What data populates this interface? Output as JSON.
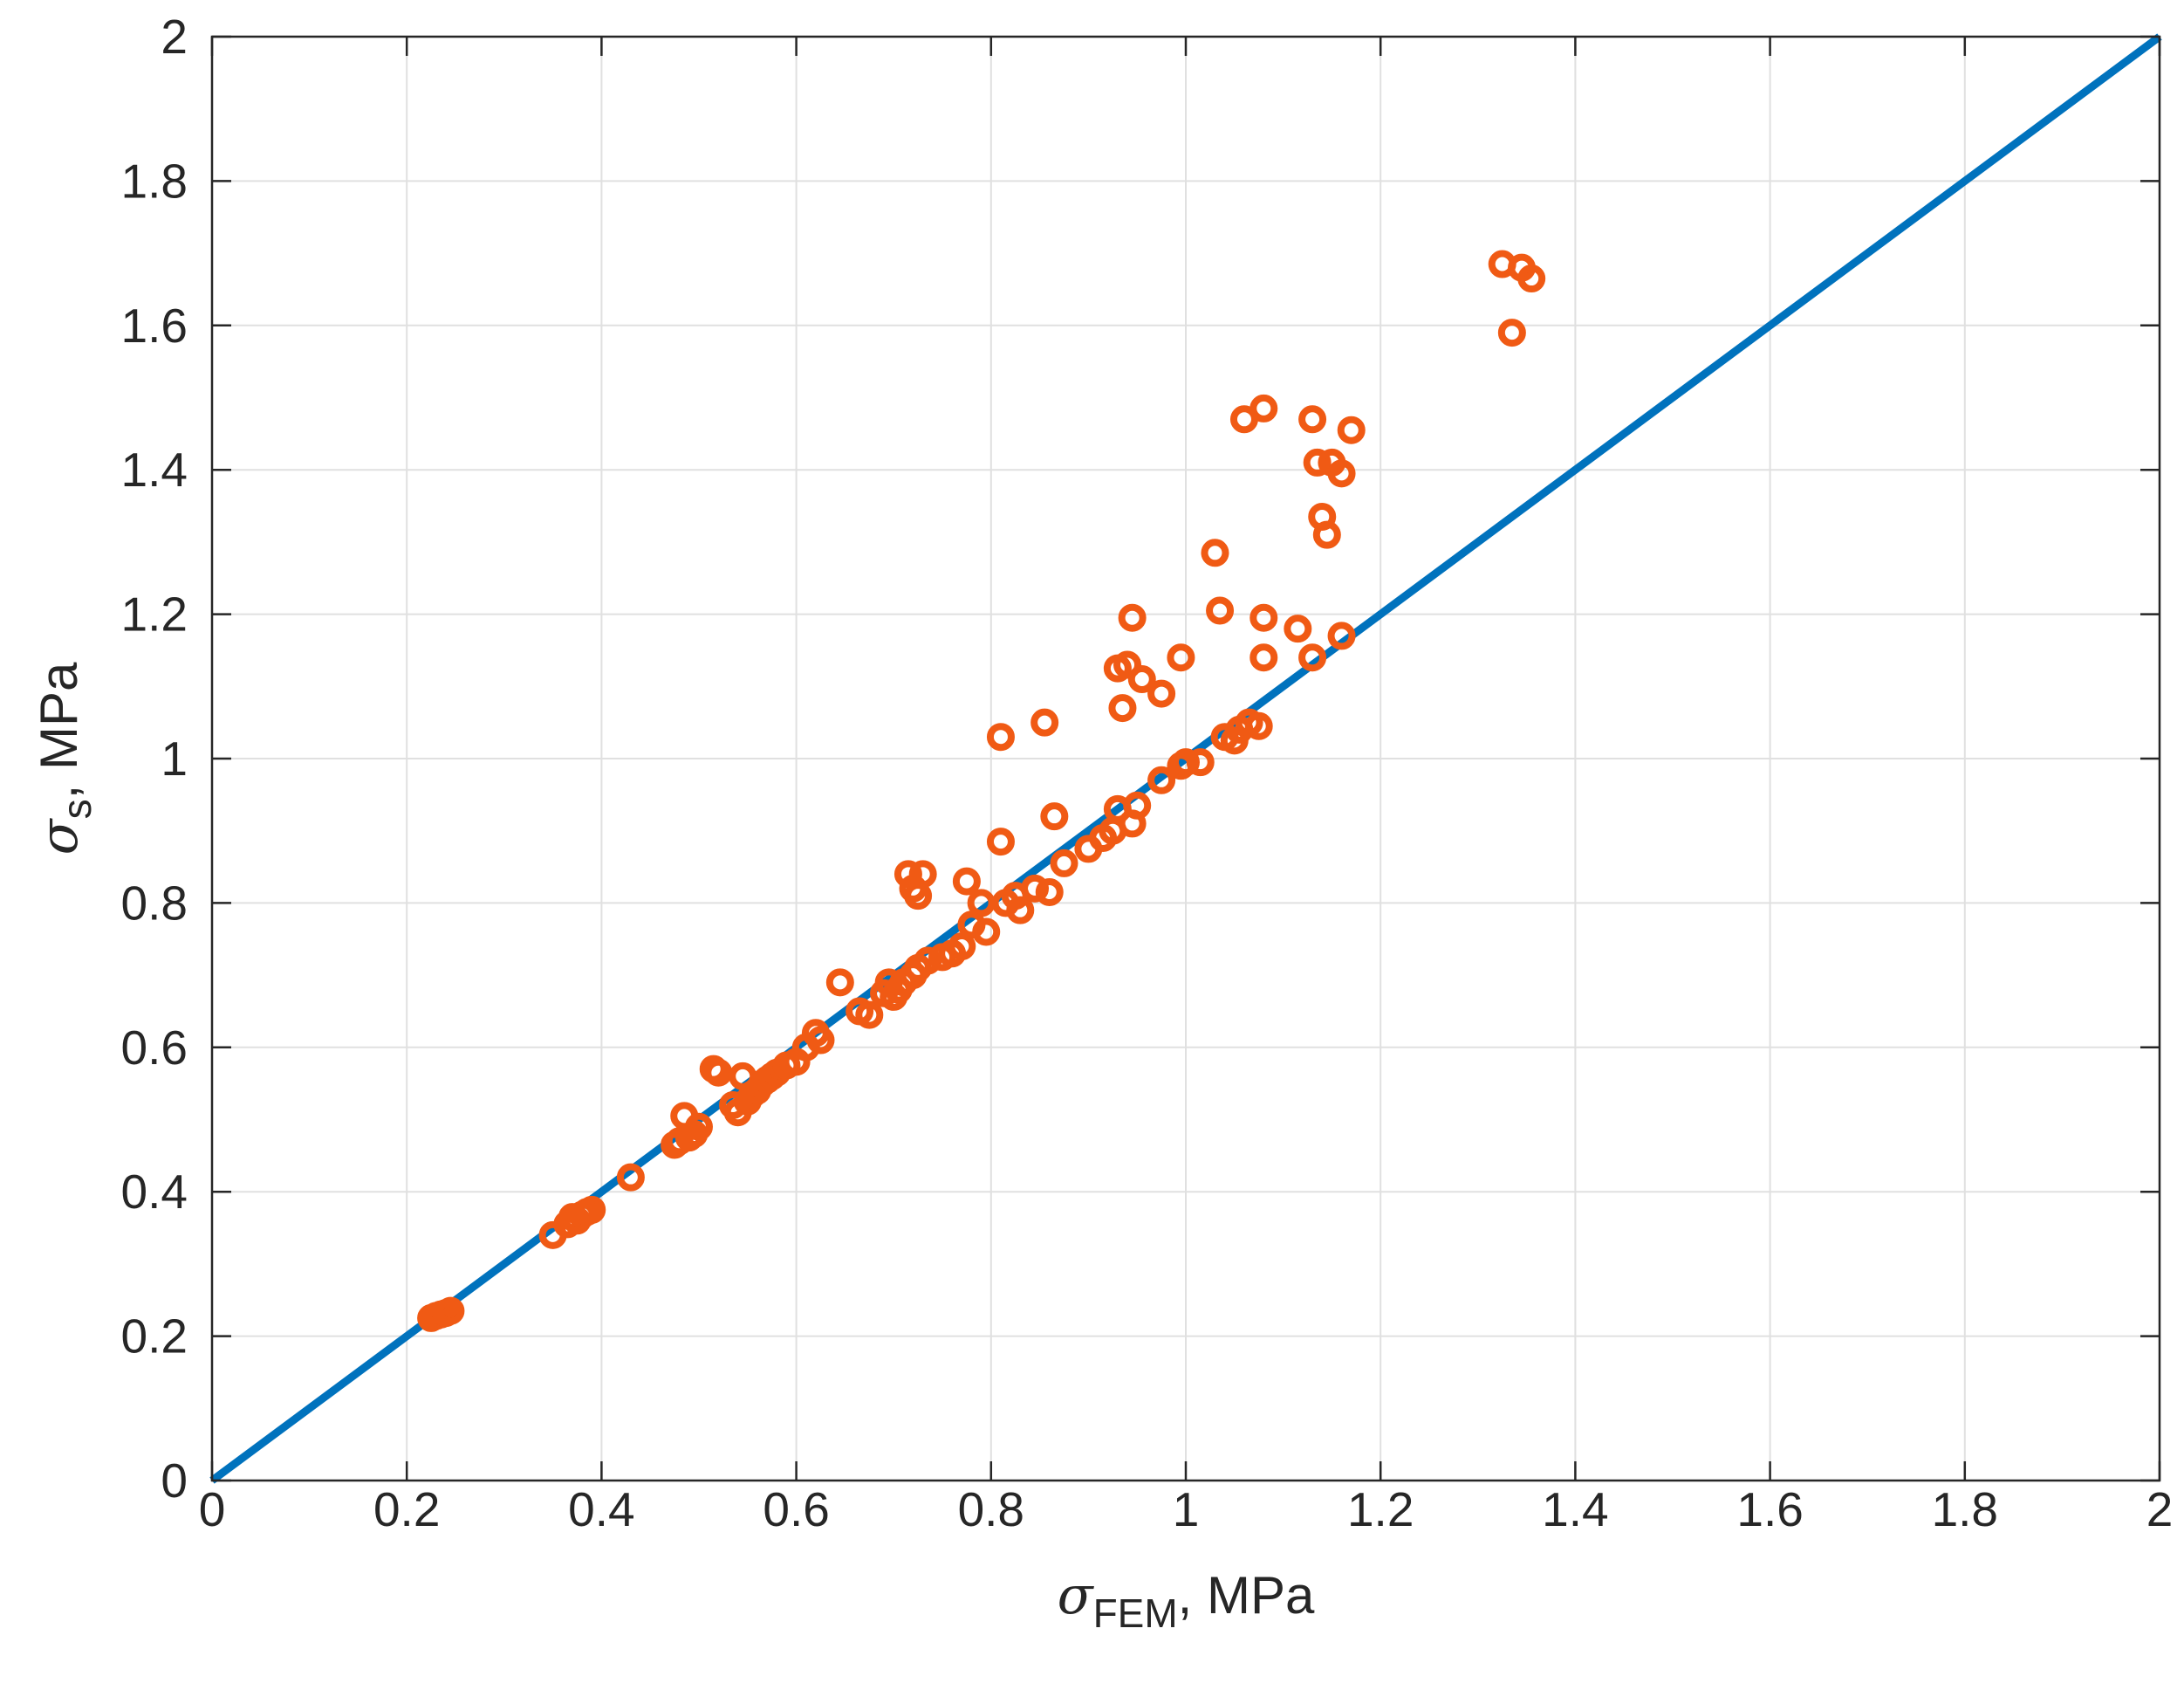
{
  "chart_data": {
    "type": "scatter",
    "xlabel": {
      "symbol": "σ",
      "subscript": "FEM",
      "suffix": ", MPa"
    },
    "ylabel": {
      "symbol": "σ",
      "subscript": "s",
      "suffix": ", MPa"
    },
    "xlim": [
      0,
      2
    ],
    "ylim": [
      0,
      2
    ],
    "xticks": [
      0,
      0.2,
      0.4,
      0.6,
      0.8,
      1,
      1.2,
      1.4,
      1.6,
      1.8,
      2
    ],
    "yticks": [
      0,
      0.2,
      0.4,
      0.6,
      0.8,
      1,
      1.2,
      1.4,
      1.6,
      1.8,
      2
    ],
    "xtick_labels": [
      "0",
      "0.2",
      "0.4",
      "0.6",
      "0.8",
      "1",
      "1.2",
      "1.4",
      "1.6",
      "1.8",
      "2"
    ],
    "ytick_labels": [
      "0",
      "0.2",
      "0.4",
      "0.6",
      "0.8",
      "1",
      "1.2",
      "1.4",
      "1.6",
      "1.8",
      "2"
    ],
    "grid": true,
    "colors": {
      "line": "#0072BD",
      "markers": "#F05A14",
      "grid": "#E0E0E0",
      "axes": "#262626"
    },
    "reference_line": {
      "x": [
        0,
        2
      ],
      "y": [
        0,
        2
      ]
    },
    "series": [
      {
        "marker": "circle-open",
        "points": [
          [
            0.225,
            0.225
          ],
          [
            0.23,
            0.228
          ],
          [
            0.235,
            0.23
          ],
          [
            0.24,
            0.232
          ],
          [
            0.245,
            0.235
          ],
          [
            0.35,
            0.34
          ],
          [
            0.365,
            0.355
          ],
          [
            0.37,
            0.365
          ],
          [
            0.375,
            0.36
          ],
          [
            0.38,
            0.368
          ],
          [
            0.385,
            0.372
          ],
          [
            0.39,
            0.375
          ],
          [
            0.43,
            0.42
          ],
          [
            0.475,
            0.465
          ],
          [
            0.48,
            0.47
          ],
          [
            0.485,
            0.505
          ],
          [
            0.49,
            0.475
          ],
          [
            0.495,
            0.48
          ],
          [
            0.5,
            0.49
          ],
          [
            0.515,
            0.57
          ],
          [
            0.52,
            0.565
          ],
          [
            0.535,
            0.52
          ],
          [
            0.54,
            0.51
          ],
          [
            0.545,
            0.56
          ],
          [
            0.55,
            0.525
          ],
          [
            0.555,
            0.535
          ],
          [
            0.56,
            0.54
          ],
          [
            0.565,
            0.55
          ],
          [
            0.57,
            0.555
          ],
          [
            0.575,
            0.56
          ],
          [
            0.58,
            0.565
          ],
          [
            0.59,
            0.575
          ],
          [
            0.6,
            0.58
          ],
          [
            0.61,
            0.6
          ],
          [
            0.62,
            0.62
          ],
          [
            0.625,
            0.61
          ],
          [
            0.645,
            0.69
          ],
          [
            0.665,
            0.65
          ],
          [
            0.675,
            0.645
          ],
          [
            0.69,
            0.675
          ],
          [
            0.695,
            0.69
          ],
          [
            0.7,
            0.67
          ],
          [
            0.705,
            0.68
          ],
          [
            0.71,
            0.69
          ],
          [
            0.715,
            0.84
          ],
          [
            0.72,
            0.82
          ],
          [
            0.725,
            0.81
          ],
          [
            0.73,
            0.84
          ],
          [
            0.72,
            0.7
          ],
          [
            0.725,
            0.71
          ],
          [
            0.735,
            0.72
          ],
          [
            0.75,
            0.725
          ],
          [
            0.76,
            0.73
          ],
          [
            0.77,
            0.74
          ],
          [
            0.775,
            0.83
          ],
          [
            0.78,
            0.77
          ],
          [
            0.79,
            0.8
          ],
          [
            0.795,
            0.76
          ],
          [
            0.81,
            0.885
          ],
          [
            0.81,
            1.03
          ],
          [
            0.815,
            0.8
          ],
          [
            0.825,
            0.81
          ],
          [
            0.83,
            0.79
          ],
          [
            0.845,
            0.82
          ],
          [
            0.855,
            1.05
          ],
          [
            0.86,
            0.815
          ],
          [
            0.865,
            0.92
          ],
          [
            0.875,
            0.855
          ],
          [
            0.9,
            0.875
          ],
          [
            0.915,
            0.89
          ],
          [
            0.925,
            0.9
          ],
          [
            0.93,
            0.93
          ],
          [
            0.93,
            1.125
          ],
          [
            0.935,
            1.07
          ],
          [
            0.94,
            1.13
          ],
          [
            0.945,
            0.91
          ],
          [
            0.945,
            1.195
          ],
          [
            0.95,
            0.935
          ],
          [
            0.955,
            1.11
          ],
          [
            0.975,
            0.97
          ],
          [
            0.975,
            1.09
          ],
          [
            0.995,
            1.14
          ],
          [
            0.995,
            0.99
          ],
          [
            1.0,
            0.995
          ],
          [
            1.015,
            0.995
          ],
          [
            1.03,
            1.285
          ],
          [
            1.035,
            1.205
          ],
          [
            1.04,
            1.03
          ],
          [
            1.05,
            1.025
          ],
          [
            1.055,
            1.04
          ],
          [
            1.06,
            1.47
          ],
          [
            1.065,
            1.05
          ],
          [
            1.075,
            1.045
          ],
          [
            1.08,
            1.485
          ],
          [
            1.08,
            1.195
          ],
          [
            1.08,
            1.14
          ],
          [
            1.115,
            1.18
          ],
          [
            1.13,
            1.14
          ],
          [
            1.13,
            1.47
          ],
          [
            1.135,
            1.41
          ],
          [
            1.14,
            1.335
          ],
          [
            1.145,
            1.31
          ],
          [
            1.15,
            1.41
          ],
          [
            1.16,
            1.395
          ],
          [
            1.16,
            1.17
          ],
          [
            1.17,
            1.455
          ],
          [
            1.325,
            1.685
          ],
          [
            1.335,
            1.59
          ],
          [
            1.345,
            1.68
          ],
          [
            1.355,
            1.665
          ]
        ]
      }
    ]
  }
}
